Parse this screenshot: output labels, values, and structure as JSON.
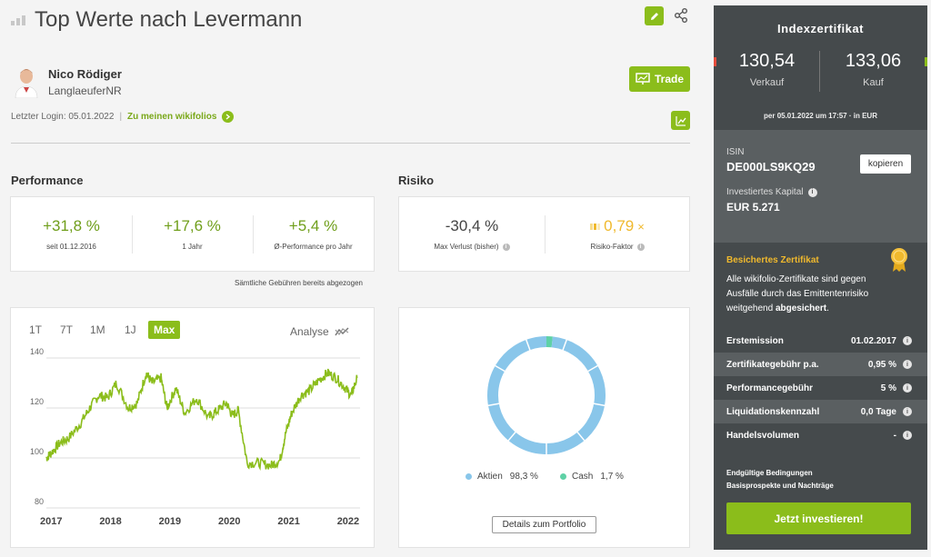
{
  "header": {
    "title": "Top Werte nach Levermann"
  },
  "trader": {
    "name": "Nico Rödiger",
    "nickname": "LanglaeuferNR"
  },
  "trade_button": "Trade",
  "login": {
    "text": "Letzter Login: 05.01.2022",
    "separator": "|",
    "link": "Zu meinen wikifolios"
  },
  "performance": {
    "heading": "Performance",
    "stats": [
      {
        "value": "+31,8 %",
        "label": "seit 01.12.2016"
      },
      {
        "value": "+17,6 %",
        "label": "1 Jahr"
      },
      {
        "value": "+5,4 %",
        "label": "Ø-Performance pro Jahr"
      }
    ],
    "fee_note": "Sämtliche Gebühren bereits abgezogen"
  },
  "risk": {
    "heading": "Risiko",
    "stats": [
      {
        "value": "-30,4 %",
        "label": "Max Verlust (bisher)"
      },
      {
        "value": "0,79",
        "unit": "×",
        "label": "Risiko-Faktor"
      }
    ]
  },
  "timeframes": [
    "1T",
    "7T",
    "1M",
    "1J",
    "Max"
  ],
  "active_timeframe": "Max",
  "analyse_label": "Analyse",
  "chart_data": [
    {
      "type": "line",
      "x_ticks": [
        "2017",
        "2018",
        "2019",
        "2020",
        "2021",
        "2022"
      ],
      "y_ticks": [
        140,
        120,
        100,
        80
      ],
      "ylim": [
        80,
        140
      ],
      "xlim": [
        2016.92,
        2022.2
      ],
      "grid": true,
      "color": "#8bbd1b",
      "x": [
        2016.92,
        2017.0,
        2017.15,
        2017.3,
        2017.5,
        2017.65,
        2017.8,
        2017.95,
        2018.1,
        2018.3,
        2018.45,
        2018.6,
        2018.7,
        2018.85,
        2018.95,
        2019.1,
        2019.25,
        2019.45,
        2019.65,
        2019.8,
        2019.95,
        2020.05,
        2020.15,
        2020.3,
        2020.5,
        2020.7,
        2020.85,
        2020.95,
        2021.05,
        2021.2,
        2021.35,
        2021.5,
        2021.65,
        2021.8,
        2021.95,
        2022.05,
        2022.15
      ],
      "y": [
        100,
        102,
        106,
        108,
        114,
        120,
        125,
        124,
        130,
        120,
        122,
        134,
        130,
        132,
        120,
        128,
        118,
        124,
        116,
        119,
        122,
        117,
        119,
        98,
        98,
        97,
        99,
        110,
        118,
        125,
        127,
        131,
        134,
        132,
        128,
        125,
        132
      ]
    },
    {
      "type": "pie",
      "categories": [
        "Aktien",
        "Cash"
      ],
      "values": [
        98.3,
        1.7
      ],
      "colors": [
        "#89c6ea",
        "#5fd1a6"
      ],
      "legend": [
        {
          "name": "Aktien",
          "value": "98,3 %"
        },
        {
          "name": "Cash",
          "value": "1,7 %"
        }
      ]
    }
  ],
  "details_button": "Details zum Portfolio",
  "sidebar": {
    "heading": "Indexzertifikat",
    "sell": {
      "price": "130,54",
      "label": "Verkauf"
    },
    "buy": {
      "price": "133,06",
      "label": "Kauf"
    },
    "price_date": "per 05.01.2022 um 17:57 · in EUR",
    "isin_label": "ISIN",
    "isin": "DE000LS9KQ29",
    "copy_button": "kopieren",
    "capital_label": "Investiertes Kapital",
    "capital": "EUR 5.271",
    "secured_title": "Besichertes Zertifikat",
    "secured_text_1": "Alle wikifolio-Zertifikate sind gegen Ausfälle durch das Emittentenrisiko weitgehend ",
    "secured_text_bold": "abgesichert",
    "secured_text_2": ".",
    "rows": [
      {
        "key": "Erstemission",
        "value": "01.02.2017"
      },
      {
        "key": "Zertifikategebühr p.a.",
        "value": "0,95 %"
      },
      {
        "key": "Performancegebühr",
        "value": "5 %"
      },
      {
        "key": "Liquidationskennzahl",
        "value": "0,0 Tage"
      },
      {
        "key": "Handelsvolumen",
        "value": "-"
      }
    ],
    "conditions_link": "Endgültige Bedingungen",
    "prospectus_link": "Basisprospekte und Nachträge",
    "invest_button": "Jetzt investieren!"
  },
  "colors": {
    "accent": "#8bbd1b",
    "sidebar": "#454a4c",
    "sidebar_alt": "#5a5f61",
    "gold": "#f0b92d"
  }
}
